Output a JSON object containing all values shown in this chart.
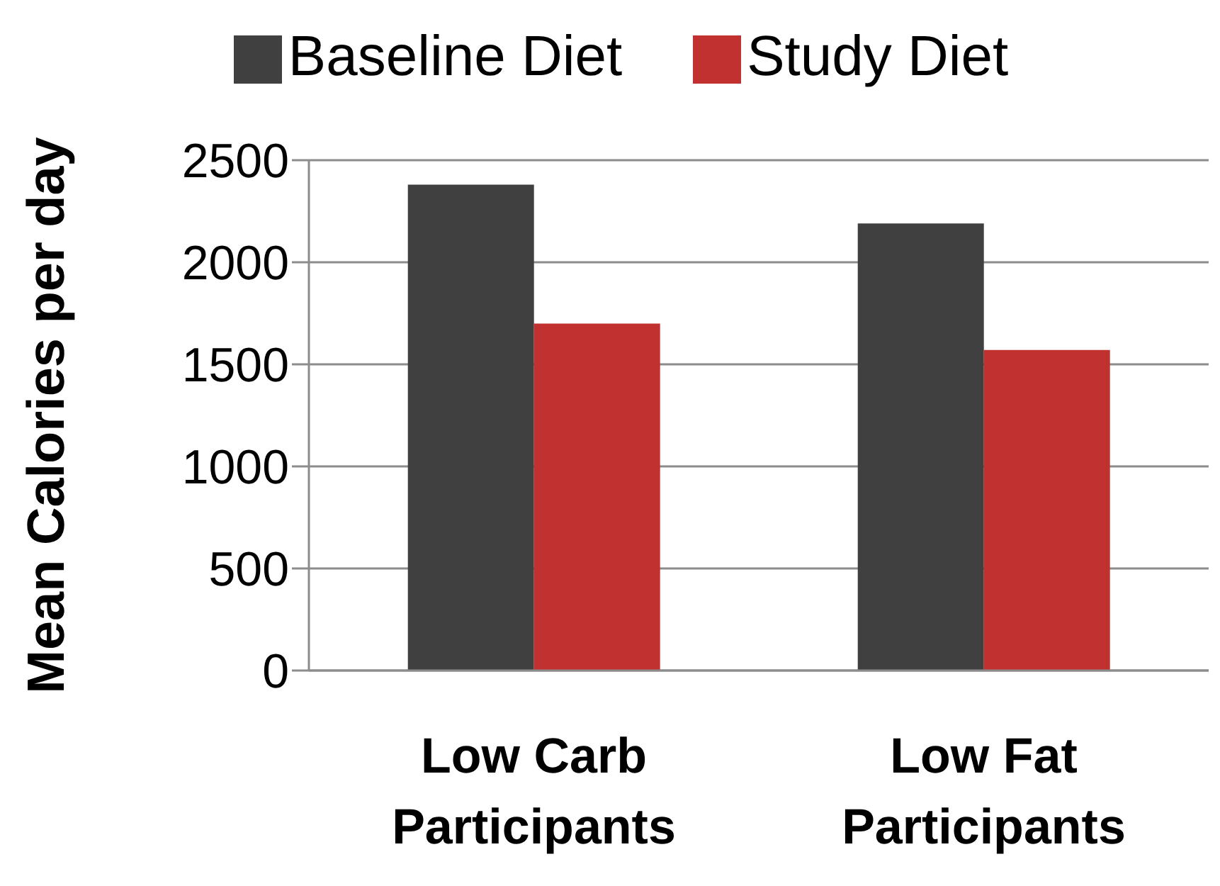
{
  "chart_data": {
    "type": "bar",
    "ylabel": "Mean Calories per day",
    "categories": [
      "Low Carb Participants",
      "Low Fat Participants"
    ],
    "series": [
      {
        "name": "Baseline Diet",
        "color": "#404040",
        "values": [
          2380,
          2190
        ]
      },
      {
        "name": "Study Diet",
        "color": "#c0312f",
        "values": [
          1700,
          1570
        ]
      }
    ],
    "ylim": [
      0,
      2500
    ],
    "yticks": [
      0,
      500,
      1000,
      1500,
      2000,
      2500
    ],
    "grid": "y",
    "legend": "top"
  }
}
